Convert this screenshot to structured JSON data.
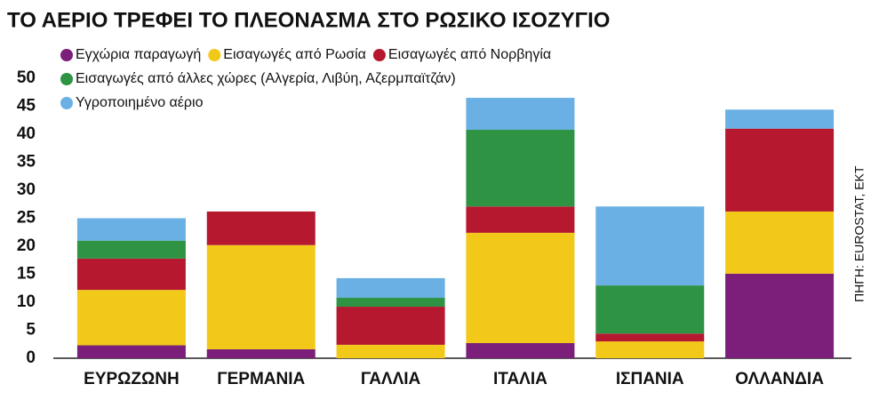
{
  "chart_data": {
    "type": "stacked_bar",
    "title": "ΤΟ ΑΕΡΙΟ ΤΡΕΦΕΙ ΤΟ ΠΛΕΟΝΑΣΜΑ ΣΤΟ ΡΩΣΙΚΟ ΙΣΟΖΥΓΙΟ",
    "source": "ΠΗΓΗ: EUROSTAT, EKT",
    "categories": [
      "ΕΥΡΩΖΩΝΗ",
      "ΓΕΡΜΑΝΙΑ",
      "ΓΑΛΛΙΑ",
      "ΙΤΑΛΙΑ",
      "ΙΣΠΑΝΙΑ",
      "ΟΛΛΑΝΔΙΑ"
    ],
    "series": [
      {
        "name": "Εγχώρια παραγωγή",
        "color": "#7b1f7a",
        "values": [
          2.3,
          1.6,
          0,
          2.7,
          0,
          15.1
        ]
      },
      {
        "name": "Εισαγωγές από Ρωσία",
        "color": "#f2c918",
        "values": [
          9.9,
          18.6,
          2.4,
          19.7,
          3.0,
          11.1
        ]
      },
      {
        "name": "Εισαγωγές από Νορβηγία",
        "color": "#b5182f",
        "values": [
          5.6,
          6.0,
          6.8,
          4.7,
          1.4,
          14.8
        ]
      },
      {
        "name": "Εισαγωγές από άλλες χώρες (Αλγερία, Λιβύη, Αζερμπαϊτζάν)",
        "color": "#2e9444",
        "values": [
          3.2,
          0,
          1.6,
          13.7,
          8.6,
          0
        ]
      },
      {
        "name": "Υγροποιημένο αέριο",
        "color": "#6ab0e4",
        "values": [
          4.0,
          0,
          3.5,
          5.7,
          14.1,
          3.4
        ]
      }
    ],
    "ylim": [
      0,
      50
    ],
    "yticks": [
      0,
      5,
      10,
      15,
      20,
      25,
      30,
      35,
      40,
      45,
      50
    ],
    "grid": false
  }
}
